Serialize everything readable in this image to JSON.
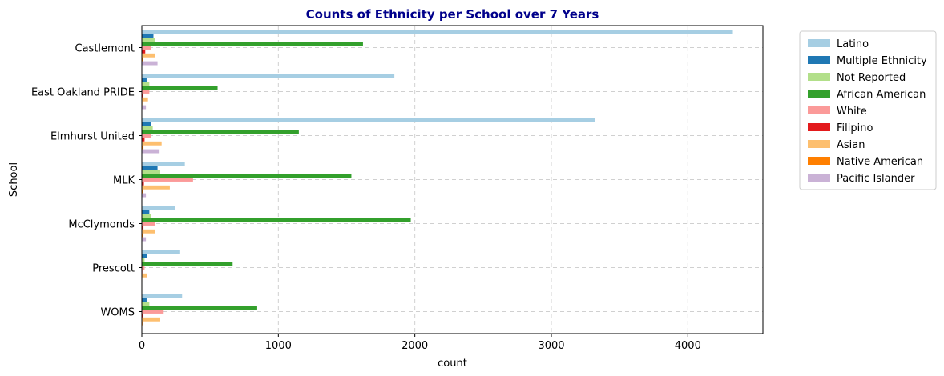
{
  "chart_data": {
    "type": "bar",
    "orientation": "horizontal",
    "title": "Counts of Ethnicity per School over 7 Years",
    "title_color": "#00008B",
    "xlabel": "count",
    "ylabel": "School",
    "xlim": [
      0,
      4550
    ],
    "xticks": [
      0,
      1000,
      2000,
      3000,
      4000
    ],
    "grid": true,
    "legend_position": "outside-right",
    "categories": [
      "Castlemont",
      "East Oakland PRIDE",
      "Elmhurst United",
      "MLK",
      "McClymonds",
      "Prescott",
      "WOMS"
    ],
    "series": [
      {
        "name": "Latino",
        "color": "#a6cee3",
        "values": [
          4330,
          1850,
          3320,
          315,
          245,
          275,
          295
        ]
      },
      {
        "name": "Multiple Ethnicity",
        "color": "#1f78b4",
        "values": [
          85,
          35,
          70,
          115,
          55,
          40,
          35
        ]
      },
      {
        "name": "Not Reported",
        "color": "#b2df8a",
        "values": [
          95,
          55,
          80,
          135,
          70,
          20,
          55
        ]
      },
      {
        "name": "African American",
        "color": "#33a02c",
        "values": [
          1620,
          555,
          1150,
          1535,
          1970,
          665,
          845
        ]
      },
      {
        "name": "White",
        "color": "#fb9a99",
        "values": [
          70,
          55,
          65,
          375,
          95,
          20,
          160
        ]
      },
      {
        "name": "Filipino",
        "color": "#e31a1c",
        "values": [
          25,
          8,
          20,
          15,
          12,
          4,
          10
        ]
      },
      {
        "name": "Asian",
        "color": "#fdbf6f",
        "values": [
          95,
          45,
          145,
          205,
          95,
          40,
          135
        ]
      },
      {
        "name": "Native American",
        "color": "#ff7f00",
        "values": [
          10,
          4,
          12,
          8,
          6,
          3,
          5
        ]
      },
      {
        "name": "Pacific Islander",
        "color": "#cab2d6",
        "values": [
          115,
          30,
          130,
          30,
          30,
          0,
          0
        ]
      }
    ]
  }
}
